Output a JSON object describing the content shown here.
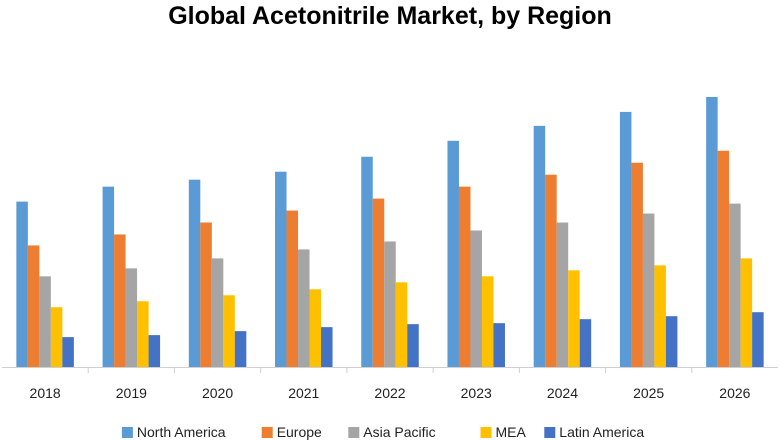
{
  "chart_data": {
    "type": "bar",
    "title": "Global Acetonitrile Market, by Region",
    "xlabel": "",
    "ylabel": "",
    "categories": [
      "2018",
      "2019",
      "2020",
      "2021",
      "2022",
      "2023",
      "2024",
      "2025",
      "2026"
    ],
    "series": [
      {
        "name": "North America",
        "color": "#5B9BD5",
        "values": [
          166,
          181,
          188,
          196,
          211,
          227,
          242,
          256,
          271
        ]
      },
      {
        "name": "Europe",
        "color": "#ED7D31",
        "values": [
          122,
          133,
          145,
          157,
          169,
          181,
          193,
          205,
          217
        ]
      },
      {
        "name": "Asia Pacific",
        "color": "#A5A5A5",
        "values": [
          91,
          99,
          109,
          118,
          126,
          137,
          145,
          154,
          164
        ]
      },
      {
        "name": "MEA",
        "color": "#FFC000",
        "values": [
          60,
          66,
          72,
          78,
          85,
          91,
          97,
          102,
          109
        ]
      },
      {
        "name": "Latin America",
        "color": "#4472C4",
        "values": [
          30,
          32,
          36,
          40,
          43,
          44,
          48,
          51,
          55
        ]
      }
    ],
    "ylim": [
      0,
      280
    ],
    "grid": false,
    "legend": "bottom"
  }
}
